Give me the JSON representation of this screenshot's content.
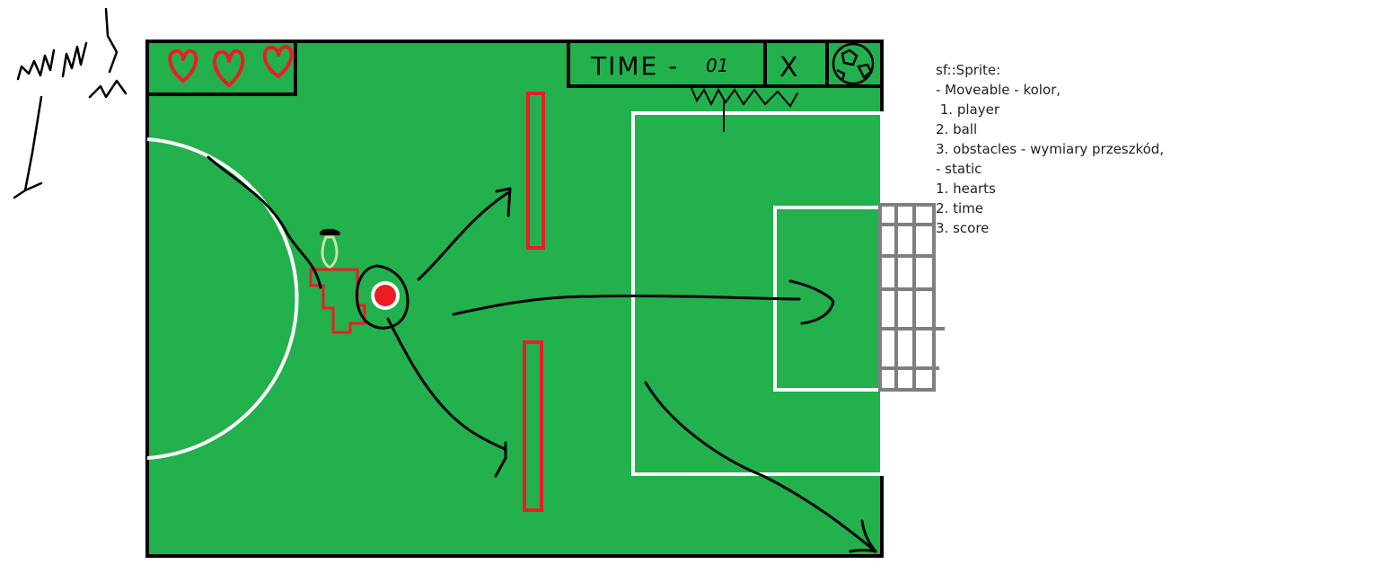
{
  "colors": {
    "field": "#22b14c",
    "frame": "#000000",
    "lines": "#ffffff",
    "heart": "#ed1c24",
    "obstacle": "#ed1c24",
    "ball": "#ed1c24",
    "player_red": "#ed1c24",
    "player_head": "#c8e6a0",
    "goal_net": "#7f7f7f",
    "arrows": "#000000"
  },
  "hud": {
    "hearts_count": 3,
    "heart_icon": "heart-icon",
    "time_label": "TIME -",
    "time_value": "01",
    "close_label": "X",
    "score_icon": "ball-icon"
  },
  "annotations": {
    "top_left_scribble": "tutaj",
    "hud_caption": "licznik"
  },
  "notes": {
    "lines": [
      "sf::Sprite:",
      "- Moveable - kolor,",
      " 1. player",
      "2. ball",
      "3. obstacles - wymiary przeszkód,",
      "",
      "- static",
      "1. hearts",
      "2. time",
      "3. score"
    ]
  }
}
